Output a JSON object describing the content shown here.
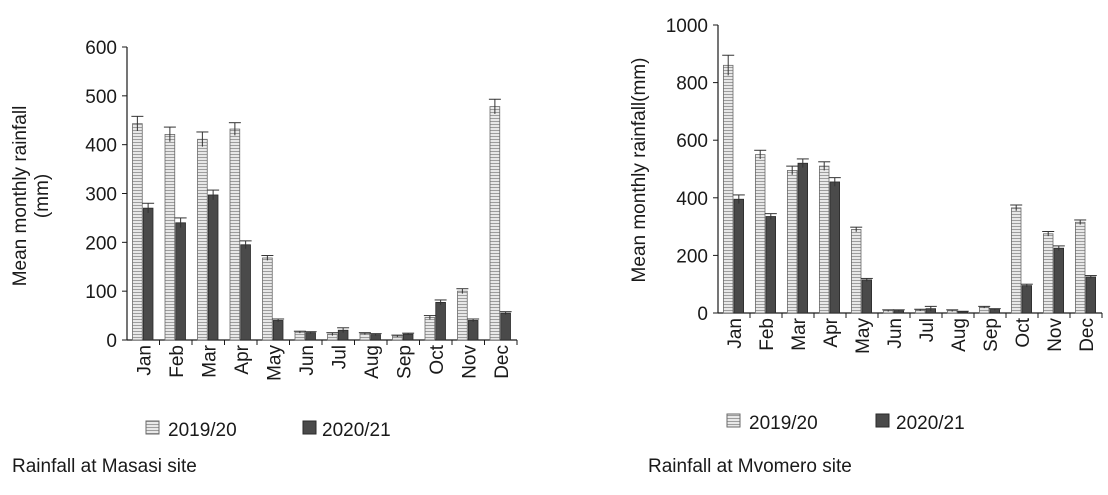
{
  "colors": {
    "series_2019": "#e8e8e8",
    "series_2019_stroke": "#6a6a6a",
    "series_2020": "#4a4a4a",
    "series_2020_stroke": "#2a2a2a",
    "axis": "#1a1a1a"
  },
  "chart_data": [
    {
      "type": "bar",
      "title": "",
      "caption": "Rainfall at Masasi site",
      "ylabel_lines": [
        "Mean monthly rainfall",
        "(mm)"
      ],
      "xlabel": "",
      "ylim": [
        0,
        600
      ],
      "yticks": [
        0,
        100,
        200,
        300,
        400,
        500,
        600
      ],
      "categories": [
        "Jan",
        "Feb",
        "Mar",
        "Apr",
        "May",
        "Jun",
        "Jul",
        "Aug",
        "Sep",
        "Oct",
        "Nov",
        "Dec"
      ],
      "series": [
        {
          "name": "2019/20",
          "values": [
            443,
            421,
            411,
            432,
            168,
            16,
            12,
            13,
            8,
            46,
            100,
            478
          ],
          "errors": [
            15,
            15,
            15,
            13,
            5,
            2,
            3,
            2,
            2,
            4,
            5,
            15
          ]
        },
        {
          "name": "2020/21",
          "values": [
            270,
            240,
            297,
            195,
            40,
            15,
            20,
            11,
            12,
            77,
            40,
            55
          ],
          "errors": [
            10,
            10,
            10,
            8,
            3,
            2,
            5,
            2,
            2,
            5,
            3,
            3
          ]
        }
      ],
      "grid": false,
      "legend": "bottom"
    },
    {
      "type": "bar",
      "title": "",
      "caption": "Rainfall at Mvomero site",
      "ylabel_lines": [
        "Mean monthly rainfall(mm)"
      ],
      "xlabel": "",
      "ylim": [
        0,
        1000
      ],
      "yticks": [
        0,
        200,
        400,
        600,
        800,
        1000
      ],
      "categories": [
        "Jan",
        "Feb",
        "Mar",
        "Apr",
        "May",
        "Jun",
        "Jul",
        "Aug",
        "Sep",
        "Oct",
        "Nov",
        "Dec"
      ],
      "series": [
        {
          "name": "2019/20",
          "values": [
            860,
            550,
            495,
            510,
            290,
            8,
            10,
            8,
            20,
            365,
            275,
            315
          ],
          "errors": [
            35,
            15,
            15,
            15,
            8,
            3,
            3,
            3,
            3,
            10,
            8,
            8
          ]
        },
        {
          "name": "2020/21",
          "values": [
            395,
            335,
            520,
            455,
            115,
            8,
            15,
            4,
            12,
            95,
            225,
            125
          ],
          "errors": [
            15,
            10,
            15,
            15,
            5,
            3,
            8,
            2,
            3,
            5,
            8,
            5
          ]
        }
      ],
      "grid": false,
      "legend": "bottom"
    }
  ]
}
